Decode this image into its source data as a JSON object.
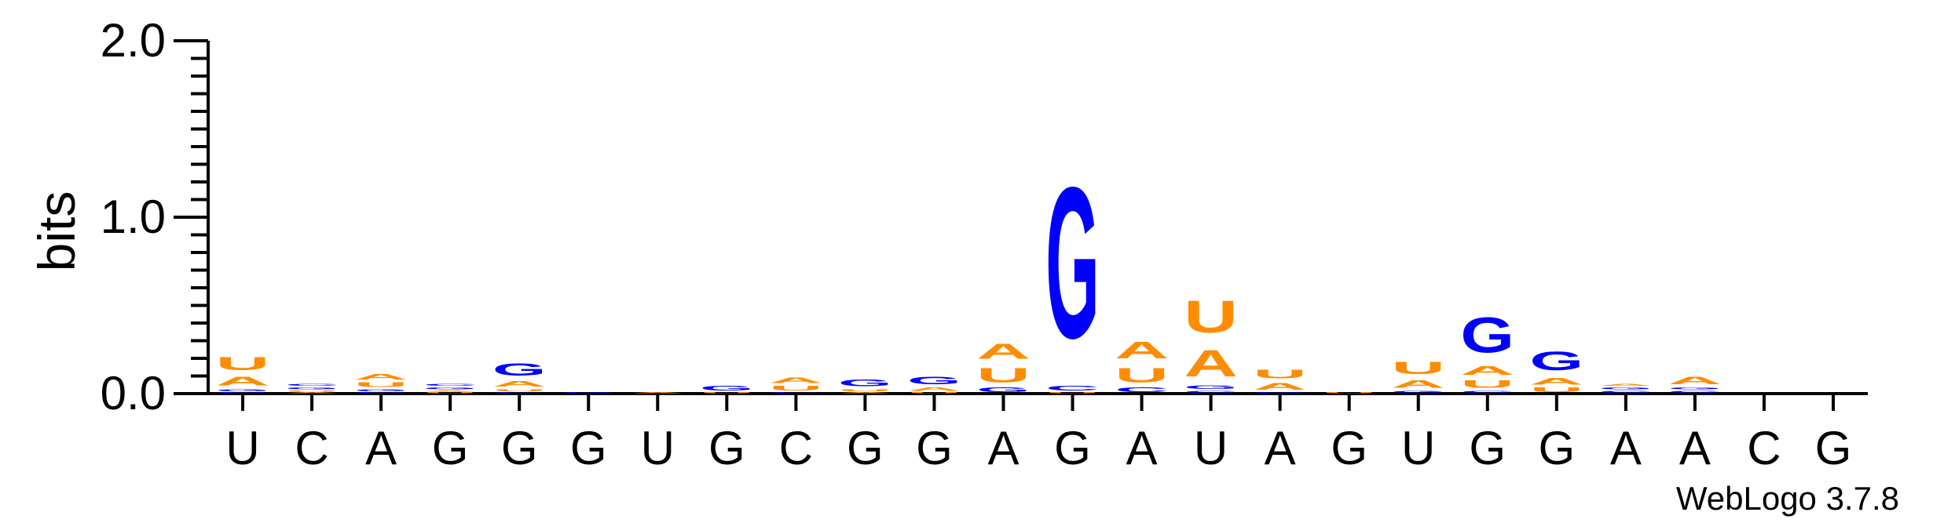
{
  "chart_data": {
    "type": "sequence-logo",
    "ylabel": "bits",
    "ylim": [
      0,
      2.0
    ],
    "yticks": [
      "0.0",
      "1.0",
      "2.0"
    ],
    "x_labels": [
      "U",
      "C",
      "A",
      "G",
      "G",
      "G",
      "U",
      "G",
      "C",
      "G",
      "G",
      "A",
      "G",
      "A",
      "U",
      "A",
      "G",
      "U",
      "G",
      "G",
      "A",
      "A",
      "C",
      "G"
    ],
    "credit": "WebLogo 3.7.8",
    "colors": {
      "A": "#FF8C00",
      "U": "#FF8C00",
      "G": "#0000FF",
      "C": "#0000FF"
    },
    "columns": [
      [
        [
          "C",
          0.01
        ],
        [
          "G",
          0.02
        ],
        [
          "A",
          0.08
        ],
        [
          "U",
          0.12
        ]
      ],
      [
        [
          "A",
          0.01
        ],
        [
          "U",
          0.01
        ],
        [
          "G",
          0.02
        ],
        [
          "C",
          0.02
        ]
      ],
      [
        [
          "C",
          0.01
        ],
        [
          "G",
          0.02
        ],
        [
          "U",
          0.04
        ],
        [
          "A",
          0.05
        ]
      ],
      [
        [
          "U",
          0.01
        ],
        [
          "A",
          0.01
        ],
        [
          "G",
          0.02
        ],
        [
          "C",
          0.02
        ]
      ],
      [
        [
          "C",
          0.01
        ],
        [
          "U",
          0.02
        ],
        [
          "A",
          0.05
        ],
        [
          "G",
          0.11
        ]
      ],
      [
        [
          "G",
          0.01
        ]
      ],
      [
        [
          "A",
          0.01
        ]
      ],
      [
        [
          "U",
          0.01
        ],
        [
          "G",
          0.04
        ]
      ],
      [
        [
          "C",
          0.01
        ],
        [
          "U",
          0.04
        ],
        [
          "A",
          0.05
        ]
      ],
      [
        [
          "A",
          0.01
        ],
        [
          "U",
          0.02
        ],
        [
          "G",
          0.06
        ]
      ],
      [
        [
          "U",
          0.01
        ],
        [
          "A",
          0.03
        ],
        [
          "G",
          0.07
        ]
      ],
      [
        [
          "G",
          0.04
        ],
        [
          "U",
          0.13
        ],
        [
          "A",
          0.14
        ]
      ],
      [
        [
          "U",
          0.01
        ],
        [
          "C",
          0.04
        ],
        [
          "G",
          1.37
        ]
      ],
      [
        [
          "C",
          0.04
        ],
        [
          "U",
          0.13
        ],
        [
          "A",
          0.15
        ]
      ],
      [
        [
          "C",
          0.02
        ],
        [
          "G",
          0.03
        ],
        [
          "A",
          0.24
        ],
        [
          "U",
          0.29
        ]
      ],
      [
        [
          "G",
          0.01
        ],
        [
          "A",
          0.06
        ],
        [
          "U",
          0.08
        ]
      ],
      [
        [
          "U",
          0.01
        ]
      ],
      [
        [
          "G",
          0.02
        ],
        [
          "A",
          0.07
        ],
        [
          "U",
          0.11
        ]
      ],
      [
        [
          "C",
          0.02
        ],
        [
          "U",
          0.07
        ],
        [
          "A",
          0.08
        ],
        [
          "G",
          0.32
        ]
      ],
      [
        [
          "U",
          0.04
        ],
        [
          "A",
          0.06
        ],
        [
          "G",
          0.17
        ]
      ],
      [
        [
          "C",
          0.02
        ],
        [
          "G",
          0.02
        ],
        [
          "A",
          0.02
        ]
      ],
      [
        [
          "C",
          0.02
        ],
        [
          "G",
          0.02
        ],
        [
          "A",
          0.07
        ]
      ],
      [],
      []
    ]
  }
}
